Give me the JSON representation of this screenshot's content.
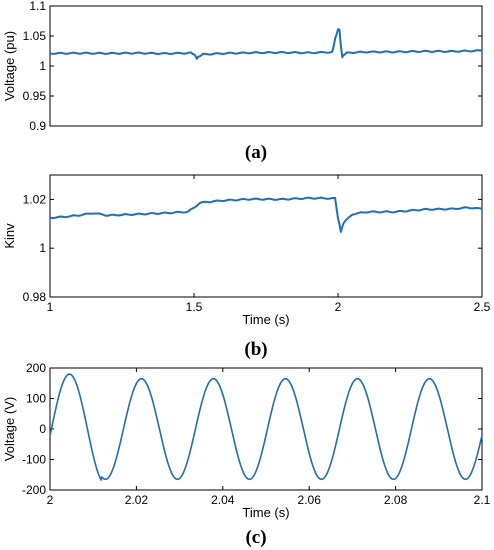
{
  "chart_data": [
    {
      "panel": "a",
      "caption": "(a)",
      "type": "line",
      "ylabel": "Voltage (pu)",
      "xlabel": "",
      "xlim": [
        1,
        2.5
      ],
      "ylim": [
        0.9,
        1.1
      ],
      "yticks": [
        "0.9",
        "0.95",
        "1",
        "1.05",
        "1.1"
      ],
      "xticks": [],
      "color": "#1f6fb5",
      "series": [
        {
          "x": [
            1.0,
            1.1,
            1.2,
            1.3,
            1.4,
            1.49,
            1.5,
            1.51,
            1.52,
            1.53,
            1.6,
            1.7,
            1.8,
            1.9,
            1.98,
            1.99,
            2.0,
            2.005,
            2.01,
            2.015,
            2.02,
            2.03,
            2.05,
            2.1,
            2.2,
            2.3,
            2.4,
            2.5
          ],
          "y": [
            1.021,
            1.022,
            1.021,
            1.022,
            1.021,
            1.022,
            1.02,
            1.013,
            1.016,
            1.019,
            1.021,
            1.022,
            1.022,
            1.022,
            1.023,
            1.045,
            1.062,
            1.06,
            1.035,
            1.014,
            1.019,
            1.022,
            1.023,
            1.023,
            1.023,
            1.024,
            1.024,
            1.025
          ]
        }
      ]
    },
    {
      "panel": "b",
      "caption": "(b)",
      "type": "line",
      "ylabel": "Kinv",
      "xlabel": "Time (s)",
      "xlim": [
        1,
        2.5
      ],
      "ylim": [
        0.98,
        1.03
      ],
      "yticks": [
        "0.98",
        "1",
        "1.02"
      ],
      "xticks": [
        "1",
        "1.5",
        "2",
        "2.5"
      ],
      "color": "#1f6fb5",
      "series": [
        {
          "x": [
            1.0,
            1.05,
            1.1,
            1.15,
            1.2,
            1.3,
            1.4,
            1.48,
            1.5,
            1.52,
            1.55,
            1.6,
            1.7,
            1.8,
            1.9,
            1.99,
            2.0,
            2.01,
            2.02,
            2.05,
            2.1,
            2.2,
            2.3,
            2.4,
            2.45,
            2.5
          ],
          "y": [
            1.0125,
            1.013,
            1.0135,
            1.0145,
            1.0135,
            1.014,
            1.0145,
            1.015,
            1.0165,
            1.0185,
            1.019,
            1.0195,
            1.02,
            1.02,
            1.0205,
            1.0205,
            1.0125,
            1.007,
            1.0105,
            1.014,
            1.015,
            1.015,
            1.016,
            1.016,
            1.0165,
            1.016
          ]
        }
      ]
    },
    {
      "panel": "c",
      "caption": "(c)",
      "type": "line",
      "ylabel": "Voltage (V)",
      "xlabel": "Time (s)",
      "xlim": [
        2,
        2.1
      ],
      "ylim": [
        -200,
        200
      ],
      "yticks": [
        "-200",
        "-100",
        "0",
        "100",
        "200"
      ],
      "xticks": [
        "2",
        "2.02",
        "2.04",
        "2.06",
        "2.08",
        "2.1"
      ],
      "color": "#1f6fb5",
      "waveform": {
        "frequency_hz": 60,
        "amplitude": 165,
        "first_peak": 180,
        "first_peak_time": 2.0045,
        "zero_at_end": -40
      }
    }
  ]
}
